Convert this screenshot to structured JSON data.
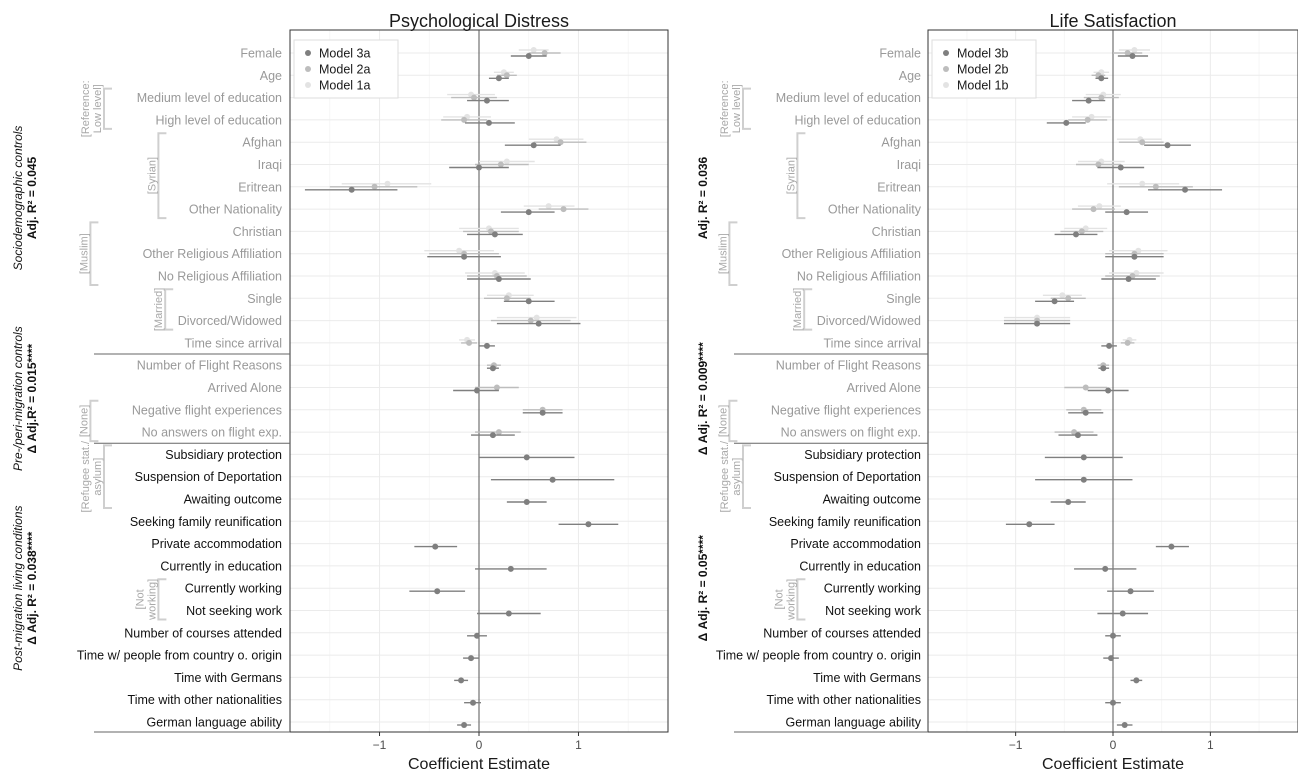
{
  "chart_data": [
    {
      "type": "scatter",
      "title": "Psychological Distress",
      "xlabel": "Coefficient Estimate",
      "xlim": [
        -1.9,
        1.9
      ],
      "xticks": [
        -1,
        0,
        1
      ],
      "xtick_labels": [
        "−1",
        "0",
        "1"
      ],
      "legend_position": "top-left",
      "series": [
        {
          "name": "Model 3a",
          "color": "#7f7f7f"
        },
        {
          "name": "Model 2a",
          "color": "#bdbdbd"
        },
        {
          "name": "Model 1a",
          "color": "#e3e3e3"
        }
      ],
      "points": [
        {
          "m3": [
            0.5,
            0.32,
            0.68
          ],
          "m2": [
            0.66,
            0.5,
            0.82
          ],
          "m1": [
            0.55,
            0.4,
            0.7
          ]
        },
        {
          "m3": [
            0.2,
            0.1,
            0.3
          ],
          "m2": [
            0.28,
            0.18,
            0.38
          ],
          "m1": [
            0.25,
            0.15,
            0.35
          ]
        },
        {
          "m3": [
            0.08,
            -0.12,
            0.3
          ],
          "m2": [
            -0.05,
            -0.28,
            0.18
          ],
          "m1": [
            -0.08,
            -0.32,
            0.16
          ]
        },
        {
          "m3": [
            0.1,
            -0.14,
            0.36
          ],
          "m2": [
            -0.15,
            -0.38,
            0.08
          ],
          "m1": [
            -0.12,
            -0.36,
            0.12
          ]
        },
        {
          "m3": [
            0.55,
            0.26,
            0.82
          ],
          "m2": [
            0.82,
            0.55,
            1.08
          ],
          "m1": [
            0.78,
            0.5,
            1.05
          ]
        },
        {
          "m3": [
            0.0,
            -0.3,
            0.3
          ],
          "m2": [
            0.22,
            -0.04,
            0.5
          ],
          "m1": [
            0.28,
            0.0,
            0.56
          ]
        },
        {
          "m3": [
            -1.28,
            -1.75,
            -0.82
          ],
          "m2": [
            -1.05,
            -1.5,
            -0.62
          ],
          "m1": [
            -0.92,
            -1.38,
            -0.48
          ]
        },
        {
          "m3": [
            0.5,
            0.22,
            0.76
          ],
          "m2": [
            0.85,
            0.6,
            1.1
          ],
          "m1": [
            0.7,
            0.45,
            0.96
          ]
        },
        {
          "m3": [
            0.16,
            -0.12,
            0.44
          ],
          "m2": [
            0.12,
            -0.16,
            0.4
          ],
          "m1": [
            0.1,
            -0.2,
            0.4
          ]
        },
        {
          "m3": [
            -0.15,
            -0.52,
            0.22
          ],
          "m2": [
            -0.15,
            -0.5,
            0.2
          ],
          "m1": [
            -0.2,
            -0.55,
            0.15
          ]
        },
        {
          "m3": [
            0.2,
            -0.12,
            0.52
          ],
          "m2": [
            0.18,
            -0.12,
            0.48
          ],
          "m1": [
            0.16,
            -0.14,
            0.46
          ]
        },
        {
          "m3": [
            0.5,
            0.25,
            0.76
          ],
          "m2": [
            0.28,
            0.05,
            0.52
          ],
          "m1": [
            0.3,
            0.08,
            0.55
          ]
        },
        {
          "m3": [
            0.6,
            0.18,
            1.02
          ],
          "m2": [
            0.52,
            0.12,
            0.92
          ],
          "m1": [
            0.58,
            0.18,
            0.98
          ]
        },
        {
          "m3": [
            0.08,
            0.0,
            0.16
          ],
          "m2": [
            -0.1,
            -0.18,
            -0.02
          ],
          "m1": [
            -0.12,
            -0.2,
            -0.04
          ]
        },
        {
          "m3": [
            0.14,
            0.08,
            0.2
          ],
          "m2": [
            0.15,
            0.08,
            0.22
          ]
        },
        {
          "m3": [
            -0.02,
            -0.26,
            0.2
          ],
          "m2": [
            0.18,
            -0.04,
            0.4
          ]
        },
        {
          "m3": [
            0.64,
            0.44,
            0.84
          ],
          "m2": [
            0.64,
            0.44,
            0.84
          ]
        },
        {
          "m3": [
            0.14,
            -0.08,
            0.36
          ],
          "m2": [
            0.2,
            -0.04,
            0.42
          ]
        },
        {
          "m3": [
            0.48,
            0.0,
            0.96
          ]
        },
        {
          "m3": [
            0.74,
            0.12,
            1.36
          ]
        },
        {
          "m3": [
            0.48,
            0.28,
            0.68
          ]
        },
        {
          "m3": [
            1.1,
            0.8,
            1.4
          ]
        },
        {
          "m3": [
            -0.44,
            -0.65,
            -0.22
          ]
        },
        {
          "m3": [
            0.32,
            -0.04,
            0.68
          ]
        },
        {
          "m3": [
            -0.42,
            -0.7,
            -0.14
          ]
        },
        {
          "m3": [
            0.3,
            -0.02,
            0.62
          ]
        },
        {
          "m3": [
            -0.02,
            -0.12,
            0.08
          ]
        },
        {
          "m3": [
            -0.08,
            -0.16,
            0.0
          ]
        },
        {
          "m3": [
            -0.18,
            -0.25,
            -0.11
          ]
        },
        {
          "m3": [
            -0.06,
            -0.15,
            0.02
          ]
        },
        {
          "m3": [
            -0.15,
            -0.22,
            -0.08
          ]
        }
      ]
    },
    {
      "type": "scatter",
      "title": "Life Satisfaction",
      "xlabel": "Coefficient Estimate",
      "xlim": [
        -1.9,
        1.9
      ],
      "xticks": [
        -1,
        0,
        1
      ],
      "xtick_labels": [
        "−1",
        "0",
        "1"
      ],
      "legend_position": "top-left",
      "series": [
        {
          "name": "Model 3b",
          "color": "#7f7f7f"
        },
        {
          "name": "Model 2b",
          "color": "#bdbdbd"
        },
        {
          "name": "Model 1b",
          "color": "#e3e3e3"
        }
      ],
      "points": [
        {
          "m3": [
            0.2,
            0.05,
            0.36
          ],
          "m2": [
            0.15,
            0.0,
            0.3
          ],
          "m1": [
            0.22,
            0.06,
            0.38
          ]
        },
        {
          "m3": [
            -0.12,
            -0.18,
            -0.05
          ],
          "m2": [
            -0.15,
            -0.22,
            -0.08
          ],
          "m1": [
            -0.12,
            -0.2,
            -0.04
          ]
        },
        {
          "m3": [
            -0.25,
            -0.42,
            -0.08
          ],
          "m2": [
            -0.12,
            -0.3,
            0.06
          ],
          "m1": [
            -0.1,
            -0.28,
            0.08
          ]
        },
        {
          "m3": [
            -0.48,
            -0.68,
            -0.28
          ],
          "m2": [
            -0.26,
            -0.46,
            -0.06
          ],
          "m1": [
            -0.22,
            -0.42,
            -0.02
          ]
        },
        {
          "m3": [
            0.56,
            0.32,
            0.8
          ],
          "m2": [
            0.3,
            0.06,
            0.52
          ],
          "m1": [
            0.28,
            0.04,
            0.5
          ]
        },
        {
          "m3": [
            0.08,
            -0.16,
            0.32
          ],
          "m2": [
            -0.15,
            -0.38,
            0.08
          ],
          "m1": [
            -0.12,
            -0.36,
            0.12
          ]
        },
        {
          "m3": [
            0.74,
            0.36,
            1.12
          ],
          "m2": [
            0.44,
            0.06,
            0.82
          ],
          "m1": [
            0.3,
            -0.06,
            0.68
          ]
        },
        {
          "m3": [
            0.14,
            -0.08,
            0.36
          ],
          "m2": [
            -0.2,
            -0.42,
            0.02
          ],
          "m1": [
            -0.14,
            -0.36,
            0.08
          ]
        },
        {
          "m3": [
            -0.38,
            -0.6,
            -0.16
          ],
          "m2": [
            -0.32,
            -0.54,
            -0.1
          ],
          "m1": [
            -0.28,
            -0.5,
            -0.06
          ]
        },
        {
          "m3": [
            0.22,
            -0.08,
            0.52
          ],
          "m2": [
            0.22,
            -0.08,
            0.52
          ],
          "m1": [
            0.26,
            -0.04,
            0.56
          ]
        },
        {
          "m3": [
            0.16,
            -0.12,
            0.44
          ],
          "m2": [
            0.2,
            -0.08,
            0.48
          ],
          "m1": [
            0.24,
            -0.04,
            0.52
          ]
        },
        {
          "m3": [
            -0.6,
            -0.8,
            -0.4
          ],
          "m2": [
            -0.46,
            -0.64,
            -0.28
          ],
          "m1": [
            -0.52,
            -0.72,
            -0.32
          ]
        },
        {
          "m3": [
            -0.78,
            -1.12,
            -0.44
          ],
          "m2": [
            -0.78,
            -1.12,
            -0.44
          ],
          "m1": [
            -0.78,
            -1.12,
            -0.44
          ]
        },
        {
          "m3": [
            -0.04,
            -0.12,
            0.04
          ],
          "m2": [
            0.15,
            0.08,
            0.22
          ],
          "m1": [
            0.17,
            0.1,
            0.24
          ]
        },
        {
          "m3": [
            -0.1,
            -0.15,
            -0.04
          ],
          "m2": [
            -0.1,
            -0.16,
            -0.04
          ]
        },
        {
          "m3": [
            -0.05,
            -0.26,
            0.16
          ],
          "m2": [
            -0.28,
            -0.5,
            -0.06
          ]
        },
        {
          "m3": [
            -0.28,
            -0.46,
            -0.1
          ],
          "m2": [
            -0.3,
            -0.48,
            -0.12
          ]
        },
        {
          "m3": [
            -0.36,
            -0.56,
            -0.16
          ],
          "m2": [
            -0.4,
            -0.6,
            -0.2
          ]
        },
        {
          "m3": [
            -0.3,
            -0.7,
            0.1
          ]
        },
        {
          "m3": [
            -0.3,
            -0.8,
            0.2
          ]
        },
        {
          "m3": [
            -0.46,
            -0.64,
            -0.28
          ]
        },
        {
          "m3": [
            -0.86,
            -1.1,
            -0.6
          ]
        },
        {
          "m3": [
            0.6,
            0.44,
            0.78
          ]
        },
        {
          "m3": [
            -0.08,
            -0.4,
            0.24
          ]
        },
        {
          "m3": [
            0.18,
            -0.06,
            0.42
          ]
        },
        {
          "m3": [
            0.1,
            -0.16,
            0.36
          ]
        },
        {
          "m3": [
            0.0,
            -0.08,
            0.08
          ]
        },
        {
          "m3": [
            -0.02,
            -0.1,
            0.06
          ]
        },
        {
          "m3": [
            0.24,
            0.18,
            0.3
          ]
        },
        {
          "m3": [
            0.0,
            -0.08,
            0.08
          ]
        },
        {
          "m3": [
            0.12,
            0.04,
            0.2
          ]
        }
      ]
    }
  ],
  "y_labels": [
    "Female",
    "Age",
    "Medium level of education",
    "High level of education",
    "Afghan",
    "Iraqi",
    "Eritrean",
    "Other Nationality",
    "Christian",
    "Other Religious Affiliation",
    "No Religious Affiliation",
    "Single",
    "Divorced/Widowed",
    "Time since arrival",
    "Number of Flight Reasons",
    "Arrived Alone",
    "Negative flight experiences",
    "No answers on flight exp.",
    "Subsidiary protection",
    "Suspension of Deportation",
    "Awaiting outcome",
    "Seeking family reunification",
    "Private accommodation",
    "Currently in education",
    "Currently working",
    "Not seeking work",
    "Number of courses attended",
    "Time w/ people from country o. origin",
    "Time with Germans",
    "Time with other nationalities",
    "German language ability"
  ],
  "label_colors": {
    "early": "#999999",
    "late": "#111111"
  },
  "reference_groups": [
    {
      "label": [
        "[Reference:",
        "Low level]"
      ],
      "from": 2,
      "to": 3
    },
    {
      "label": [
        "[Syrian]"
      ],
      "from": 4,
      "to": 7
    },
    {
      "label": [
        "[Muslim]"
      ],
      "from": 8,
      "to": 10
    },
    {
      "label": [
        "[Married]"
      ],
      "from": 11,
      "to": 12
    },
    {
      "label": [
        "[None]"
      ],
      "from": 16,
      "to": 17
    },
    {
      "label": [
        "[Refugee stat./",
        "asylum]"
      ],
      "from": 18,
      "to": 20
    },
    {
      "label": [
        "[Not",
        "working]"
      ],
      "from": 24,
      "to": 25
    }
  ],
  "left_sections": [
    {
      "name": "Sociodemographic controls",
      "stat": "Adj. R² = 0.045"
    },
    {
      "name": "Pre-/peri-migration controls",
      "stat": "Δ Adj.R² = 0.015****"
    },
    {
      "name": "Post-migration living conditions",
      "stat": "Δ Adj. R² = 0.038****"
    }
  ],
  "right_sections": [
    {
      "stat": "Adj. R² = 0.036"
    },
    {
      "stat": "Δ Adj. R² = 0.009****"
    },
    {
      "stat": "Δ Adj. R² = 0.05****"
    }
  ]
}
